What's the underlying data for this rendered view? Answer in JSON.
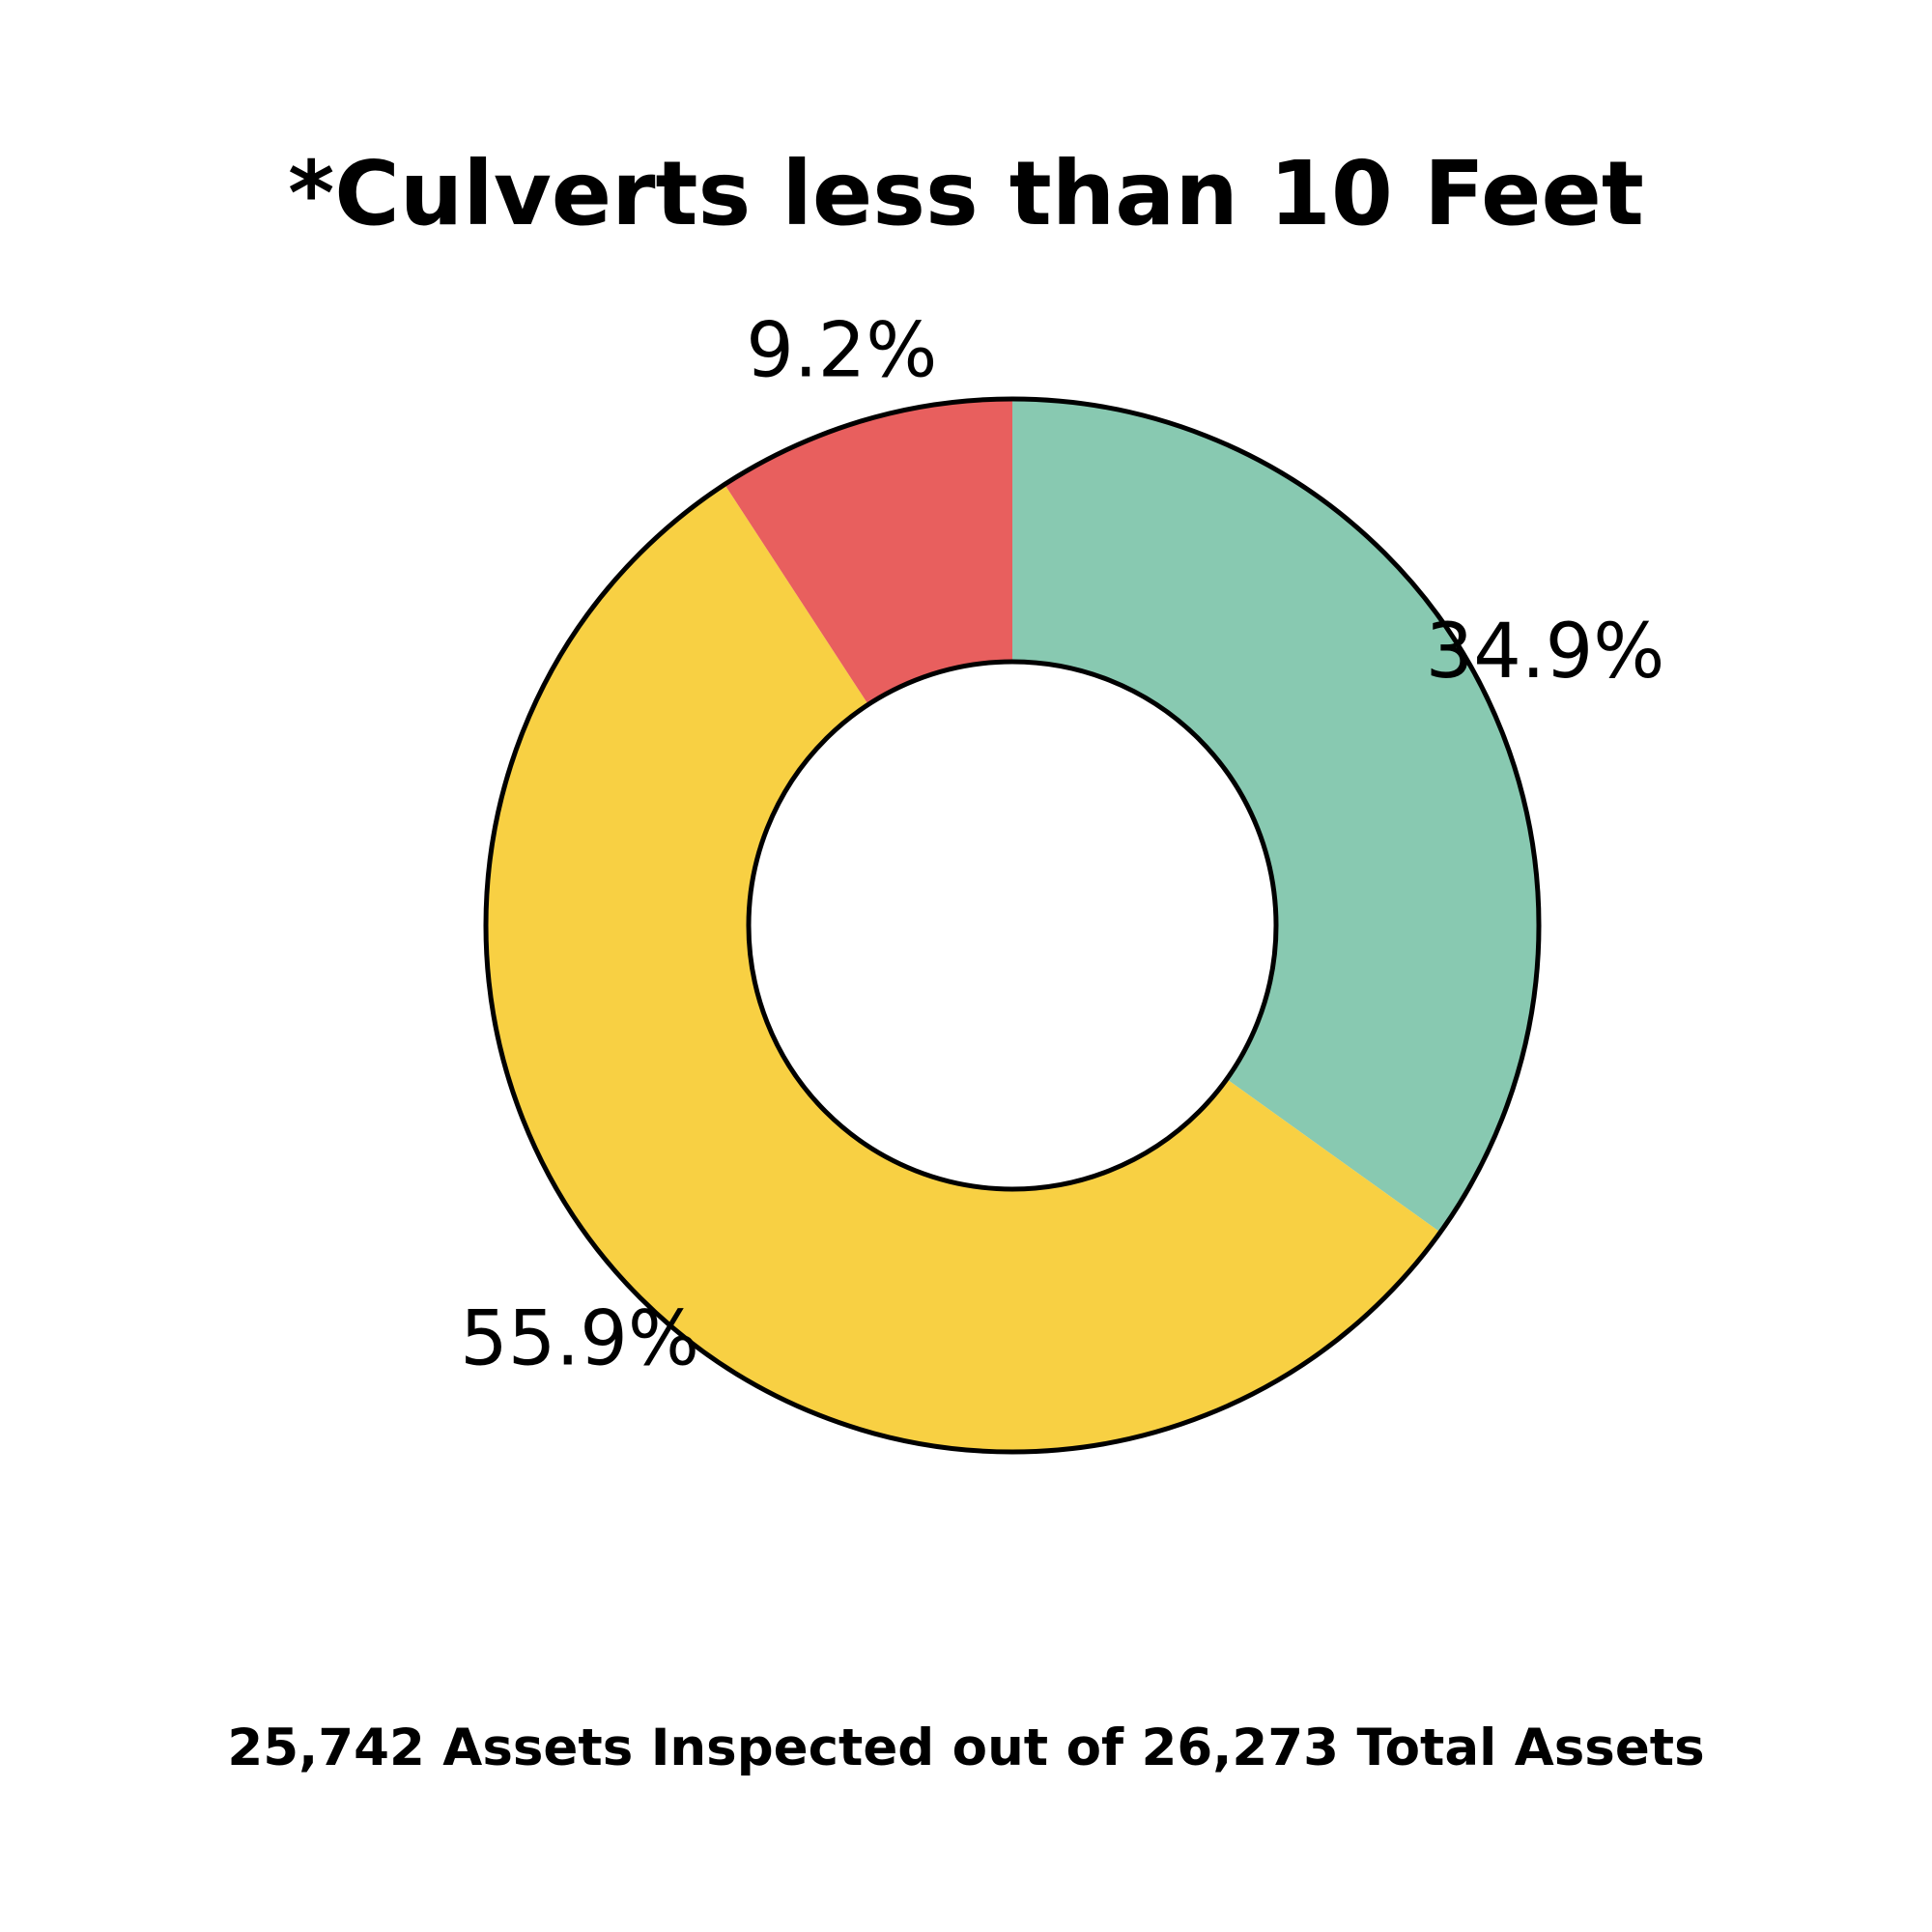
{
  "chart_data": {
    "type": "pie",
    "title": "*Culverts less than 10 Feet",
    "donut": true,
    "slices": [
      {
        "label": "34.9%",
        "value": 34.9,
        "color": "#88C9B1"
      },
      {
        "label": "55.9%",
        "value": 55.9,
        "color": "#F8D043"
      },
      {
        "label": "9.2%",
        "value": 9.2,
        "color": "#E85F5E"
      }
    ],
    "start": "12 o'clock",
    "direction": "clockwise",
    "legend": "none",
    "footer": "25,742 Assets Inspected out of 26,273 Total Assets"
  }
}
